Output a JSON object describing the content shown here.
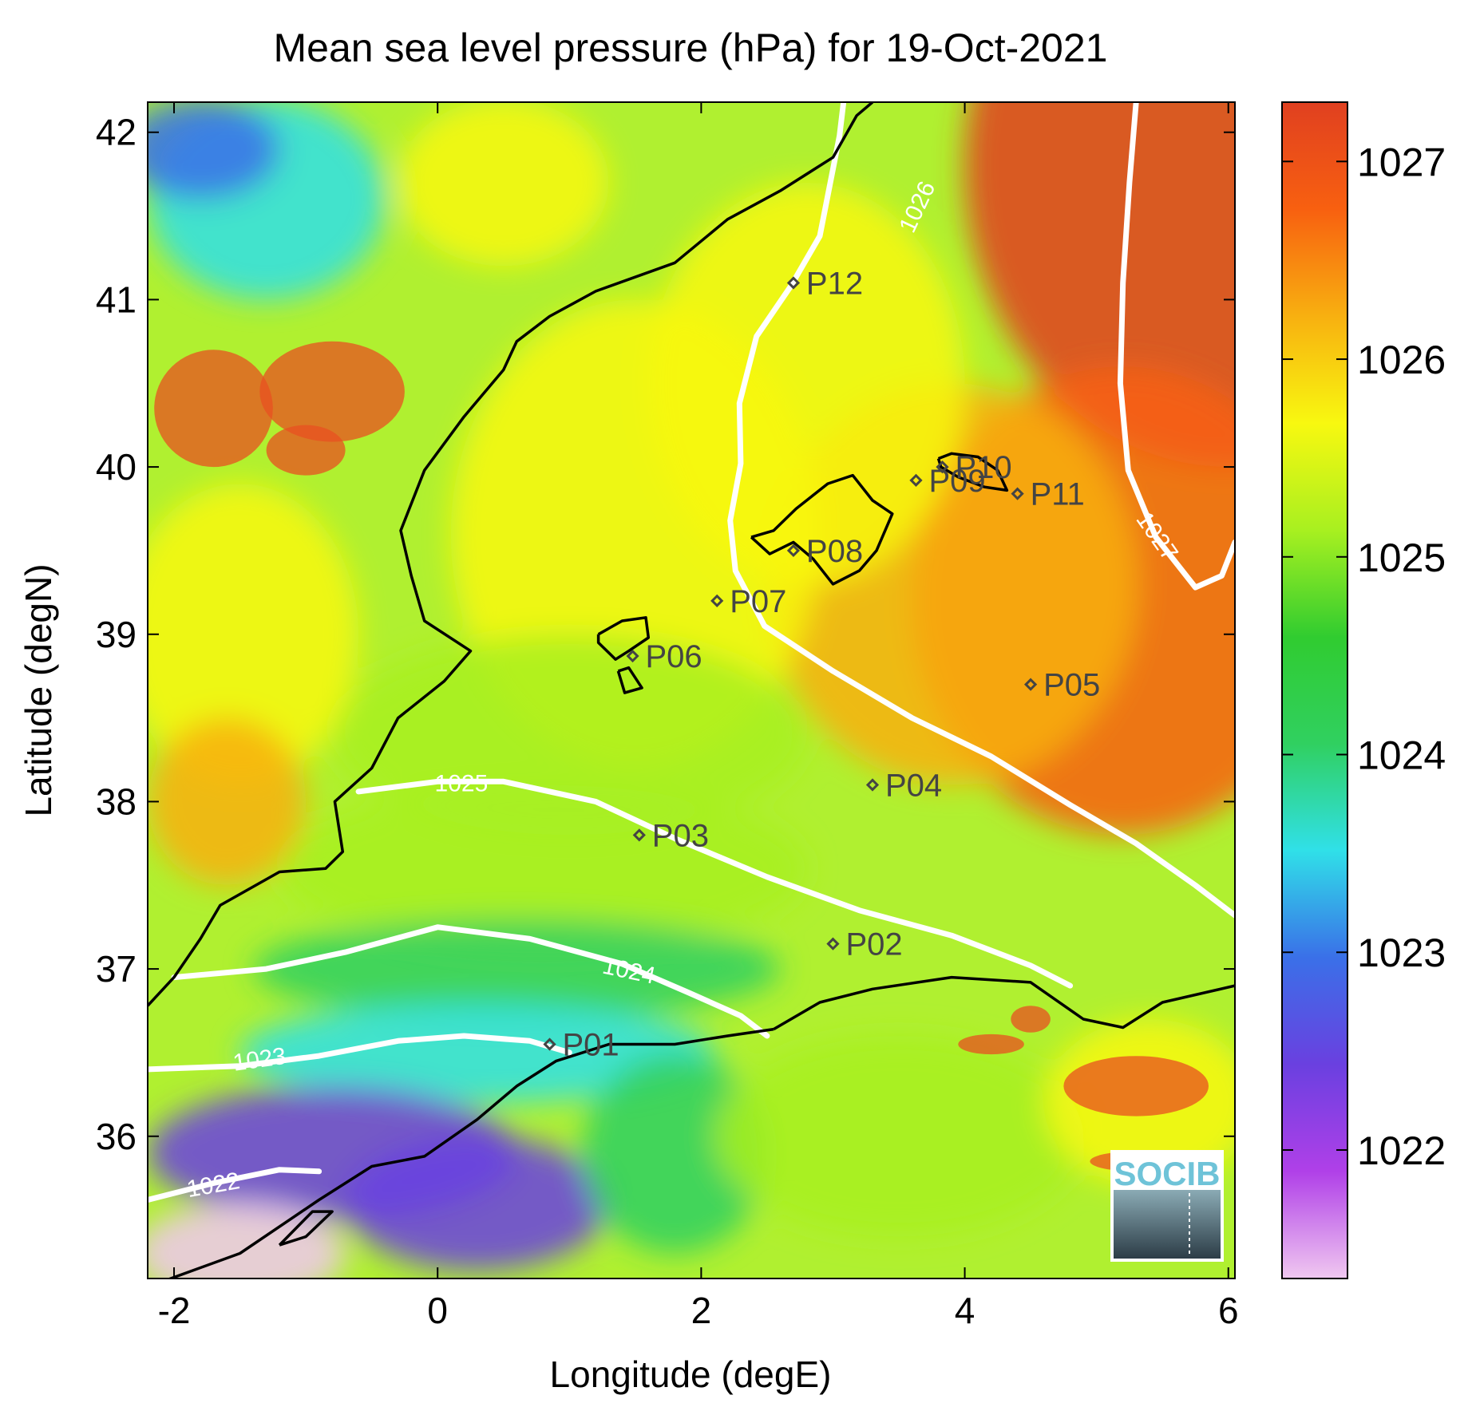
{
  "title": "Mean sea level pressure (hPa) for 19-Oct-2021",
  "x_axis": {
    "label": "Longitude (degE)",
    "min": -2.2,
    "max": 6.05,
    "ticks": [
      {
        "v": -2,
        "t": "-2"
      },
      {
        "v": 0,
        "t": "0"
      },
      {
        "v": 2,
        "t": "2"
      },
      {
        "v": 4,
        "t": "4"
      },
      {
        "v": 6,
        "t": "6"
      }
    ]
  },
  "y_axis": {
    "label": "Latitude (degN)",
    "min": 35.15,
    "max": 42.18,
    "ticks": [
      {
        "v": 36,
        "t": "36"
      },
      {
        "v": 37,
        "t": "37"
      },
      {
        "v": 38,
        "t": "38"
      },
      {
        "v": 39,
        "t": "39"
      },
      {
        "v": 40,
        "t": "40"
      },
      {
        "v": 41,
        "t": "41"
      },
      {
        "v": 42,
        "t": "42"
      }
    ]
  },
  "colorbar": {
    "min": 1021.35,
    "max": 1027.3,
    "ticks": [
      {
        "v": 1022,
        "t": "1022"
      },
      {
        "v": 1023,
        "t": "1023"
      },
      {
        "v": 1024,
        "t": "1024"
      },
      {
        "v": 1025,
        "t": "1025"
      },
      {
        "v": 1026,
        "t": "1026"
      },
      {
        "v": 1027,
        "t": "1027"
      }
    ],
    "colors": [
      "#f0c8f0",
      "#b040e8",
      "#6a40e0",
      "#3a70e8",
      "#30e0e8",
      "#30d060",
      "#30cc30",
      "#a8f020",
      "#f8f810",
      "#f8b010",
      "#f86010",
      "#e04020"
    ]
  },
  "stations": [
    {
      "name": "P01",
      "lon": 0.85,
      "lat": 36.55
    },
    {
      "name": "P02",
      "lon": 3.0,
      "lat": 37.15
    },
    {
      "name": "P03",
      "lon": 1.53,
      "lat": 37.8
    },
    {
      "name": "P04",
      "lon": 3.3,
      "lat": 38.1
    },
    {
      "name": "P05",
      "lon": 4.5,
      "lat": 38.7
    },
    {
      "name": "P06",
      "lon": 1.48,
      "lat": 38.87
    },
    {
      "name": "P07",
      "lon": 2.12,
      "lat": 39.2
    },
    {
      "name": "P08",
      "lon": 2.7,
      "lat": 39.5
    },
    {
      "name": "P09",
      "lon": 3.63,
      "lat": 39.92
    },
    {
      "name": "P10",
      "lon": 3.83,
      "lat": 40.0
    },
    {
      "name": "P11",
      "lon": 4.4,
      "lat": 39.84
    },
    {
      "name": "P12",
      "lon": 2.7,
      "lat": 41.1
    }
  ],
  "contours": [
    {
      "level": "1022",
      "points": [
        [
          -2.2,
          35.62
        ],
        [
          -1.7,
          35.72
        ],
        [
          -1.2,
          35.8
        ],
        [
          -0.9,
          35.79
        ]
      ],
      "label": {
        "lon": -1.7,
        "lat": 35.7,
        "angle": -10
      }
    },
    {
      "level": "1023",
      "points": [
        [
          -2.2,
          36.4
        ],
        [
          -1.5,
          36.42
        ],
        [
          -0.9,
          36.48
        ],
        [
          -0.3,
          36.57
        ],
        [
          0.2,
          36.6
        ],
        [
          0.7,
          36.57
        ],
        [
          1.0,
          36.5
        ]
      ],
      "label": {
        "lon": -1.35,
        "lat": 36.45,
        "angle": -8
      }
    },
    {
      "level": "1024",
      "points": [
        [
          -2.0,
          36.95
        ],
        [
          -1.3,
          37.0
        ],
        [
          -0.7,
          37.1
        ],
        [
          0.0,
          37.25
        ],
        [
          0.7,
          37.18
        ],
        [
          1.4,
          37.03
        ],
        [
          1.9,
          36.86
        ],
        [
          2.3,
          36.72
        ],
        [
          2.5,
          36.6
        ]
      ],
      "label": {
        "lon": 1.45,
        "lat": 36.98,
        "angle": 12
      }
    },
    {
      "level": "1025",
      "points": [
        [
          -0.6,
          38.06
        ],
        [
          0.0,
          38.12
        ],
        [
          0.5,
          38.12
        ],
        [
          1.2,
          38.0
        ],
        [
          1.8,
          37.78
        ],
        [
          2.5,
          37.55
        ],
        [
          3.2,
          37.35
        ],
        [
          3.9,
          37.2
        ],
        [
          4.5,
          37.02
        ],
        [
          4.8,
          36.9
        ]
      ],
      "label": {
        "lon": 0.18,
        "lat": 38.1,
        "angle": 0
      }
    },
    {
      "level": "1026",
      "points": [
        [
          3.08,
          42.18
        ],
        [
          3.05,
          41.98
        ],
        [
          2.98,
          41.7
        ],
        [
          2.9,
          41.38
        ],
        [
          2.68,
          41.08
        ],
        [
          2.42,
          40.78
        ],
        [
          2.29,
          40.38
        ],
        [
          2.3,
          40.02
        ],
        [
          2.22,
          39.68
        ],
        [
          2.26,
          39.38
        ],
        [
          2.48,
          39.05
        ],
        [
          3.0,
          38.78
        ],
        [
          3.6,
          38.5
        ],
        [
          4.2,
          38.27
        ],
        [
          4.8,
          37.98
        ],
        [
          5.3,
          37.75
        ],
        [
          5.75,
          37.5
        ],
        [
          6.05,
          37.32
        ]
      ],
      "label": {
        "lon": 3.65,
        "lat": 41.55,
        "angle": -65
      }
    },
    {
      "level": "1027",
      "points": [
        [
          5.3,
          42.18
        ],
        [
          5.25,
          41.7
        ],
        [
          5.2,
          41.1
        ],
        [
          5.18,
          40.5
        ],
        [
          5.24,
          39.98
        ],
        [
          5.45,
          39.58
        ],
        [
          5.75,
          39.28
        ],
        [
          5.95,
          39.35
        ],
        [
          6.05,
          39.55
        ]
      ],
      "label": {
        "lon": 5.45,
        "lat": 39.58,
        "angle": 55
      }
    }
  ],
  "coastlines": [
    [
      [
        -2.2,
        36.78
      ],
      [
        -2.0,
        36.95
      ],
      [
        -1.8,
        37.18
      ],
      [
        -1.65,
        37.38
      ],
      [
        -1.2,
        37.58
      ],
      [
        -0.85,
        37.6
      ],
      [
        -0.72,
        37.7
      ],
      [
        -0.78,
        38.0
      ],
      [
        -0.5,
        38.2
      ],
      [
        -0.3,
        38.5
      ],
      [
        0.05,
        38.72
      ],
      [
        0.25,
        38.9
      ],
      [
        -0.1,
        39.08
      ],
      [
        -0.2,
        39.35
      ],
      [
        -0.28,
        39.62
      ],
      [
        -0.1,
        39.98
      ],
      [
        0.2,
        40.3
      ],
      [
        0.5,
        40.58
      ],
      [
        0.6,
        40.75
      ],
      [
        0.85,
        40.9
      ],
      [
        1.2,
        41.05
      ],
      [
        1.8,
        41.22
      ],
      [
        2.2,
        41.48
      ],
      [
        2.6,
        41.65
      ],
      [
        3.0,
        41.85
      ],
      [
        3.18,
        42.1
      ],
      [
        3.3,
        42.18
      ]
    ],
    [
      [
        2.55,
        36.64
      ],
      [
        2.9,
        36.8
      ],
      [
        3.3,
        36.88
      ],
      [
        3.9,
        36.95
      ],
      [
        4.5,
        36.92
      ],
      [
        4.9,
        36.7
      ],
      [
        5.2,
        36.65
      ],
      [
        5.5,
        36.8
      ],
      [
        6.05,
        36.9
      ]
    ],
    [
      [
        -2.2,
        35.1
      ],
      [
        -1.5,
        35.3
      ],
      [
        -0.9,
        35.62
      ],
      [
        -0.5,
        35.82
      ],
      [
        -0.1,
        35.88
      ],
      [
        0.3,
        36.1
      ],
      [
        0.6,
        36.3
      ],
      [
        0.9,
        36.45
      ],
      [
        1.3,
        36.55
      ],
      [
        1.8,
        36.55
      ],
      [
        2.2,
        36.6
      ],
      [
        2.55,
        36.64
      ]
    ],
    [
      [
        2.38,
        39.58
      ],
      [
        2.55,
        39.62
      ],
      [
        2.72,
        39.75
      ],
      [
        2.96,
        39.9
      ],
      [
        3.15,
        39.95
      ],
      [
        3.3,
        39.8
      ],
      [
        3.45,
        39.72
      ],
      [
        3.33,
        39.5
      ],
      [
        3.2,
        39.38
      ],
      [
        3.0,
        39.3
      ],
      [
        2.85,
        39.45
      ],
      [
        2.7,
        39.55
      ],
      [
        2.52,
        39.48
      ],
      [
        2.38,
        39.58
      ]
    ],
    [
      [
        3.8,
        40.05
      ],
      [
        3.9,
        40.08
      ],
      [
        4.1,
        40.06
      ],
      [
        4.25,
        39.98
      ],
      [
        4.32,
        39.86
      ],
      [
        4.15,
        39.88
      ],
      [
        3.95,
        39.94
      ],
      [
        3.82,
        40.0
      ],
      [
        3.8,
        40.05
      ]
    ],
    [
      [
        1.22,
        39.0
      ],
      [
        1.4,
        39.08
      ],
      [
        1.58,
        39.1
      ],
      [
        1.6,
        38.98
      ],
      [
        1.45,
        38.9
      ],
      [
        1.35,
        38.85
      ],
      [
        1.22,
        38.95
      ],
      [
        1.22,
        39.0
      ]
    ],
    [
      [
        1.37,
        38.78
      ],
      [
        1.45,
        38.8
      ],
      [
        1.55,
        38.68
      ],
      [
        1.42,
        38.65
      ],
      [
        1.37,
        38.78
      ]
    ],
    [
      [
        -1.2,
        35.35
      ],
      [
        -1.0,
        35.4
      ],
      [
        -0.8,
        35.55
      ],
      [
        -0.95,
        35.55
      ],
      [
        -1.2,
        35.35
      ]
    ]
  ],
  "land_highs": [
    {
      "lon": -1.7,
      "lat": 40.35,
      "rx": 0.45,
      "ry": 0.35
    },
    {
      "lon": -0.8,
      "lat": 40.45,
      "rx": 0.55,
      "ry": 0.3
    },
    {
      "lon": -1.0,
      "lat": 40.1,
      "rx": 0.3,
      "ry": 0.15
    },
    {
      "lon": 5.3,
      "lat": 36.3,
      "rx": 0.55,
      "ry": 0.18
    },
    {
      "lon": 4.2,
      "lat": 36.55,
      "rx": 0.25,
      "ry": 0.06
    },
    {
      "lon": 5.3,
      "lat": 35.85,
      "rx": 0.35,
      "ry": 0.06
    },
    {
      "lon": 4.5,
      "lat": 36.7,
      "rx": 0.15,
      "ry": 0.08
    }
  ],
  "logo": {
    "text": "SOCIB"
  }
}
